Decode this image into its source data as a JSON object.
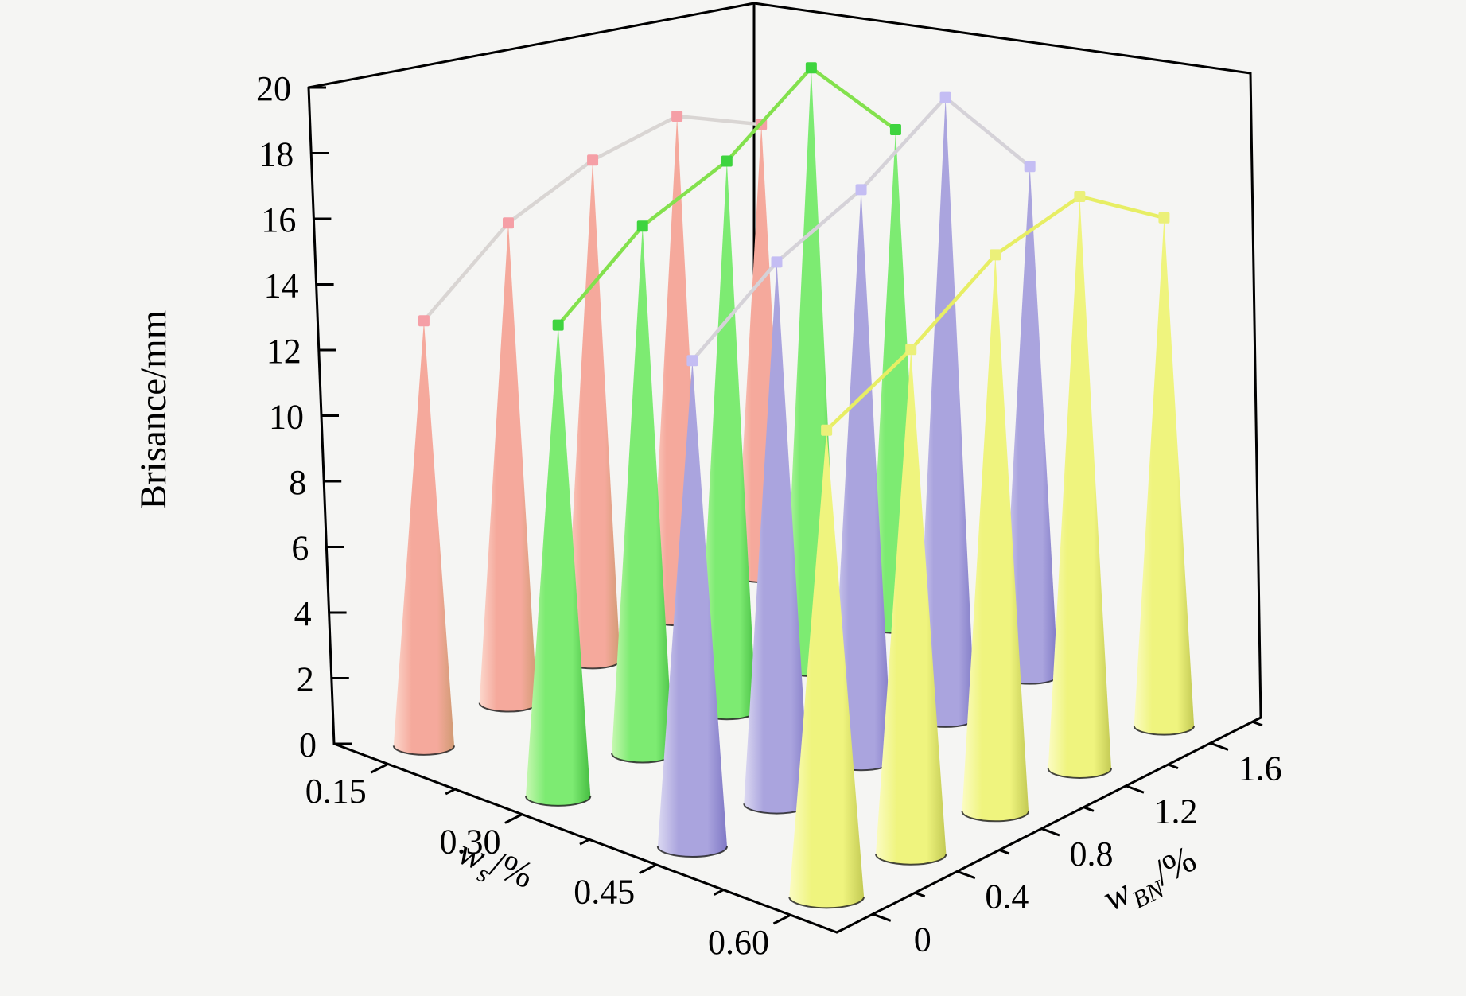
{
  "figure": {
    "background": "#f5f5f3",
    "axis_color": "#000000",
    "frame_line_width": 3
  },
  "chart_data": {
    "type": "bar",
    "subtype": "3d-cone-bar",
    "title": "",
    "grid": false,
    "legend": "none",
    "z_axis": {
      "label": "Brisance/mm",
      "ticks": [
        "0",
        "2",
        "4",
        "6",
        "8",
        "10",
        "12",
        "14",
        "16",
        "18",
        "20"
      ],
      "range": [
        0,
        20
      ]
    },
    "ws_axis": {
      "label_var": "w",
      "label_sub": "s",
      "label_unit": "/%",
      "ticks": [
        "0.15",
        "0.30",
        "0.45",
        "0.60"
      ],
      "values": [
        0.15,
        0.3,
        0.45,
        0.6
      ]
    },
    "wbn_axis": {
      "label_var": "w",
      "label_sub": "BN",
      "label_unit": "/%",
      "ticks": [
        "0",
        "0.4",
        "0.8",
        "1.2",
        "1.6"
      ],
      "values": [
        0,
        0.4,
        0.8,
        1.2,
        1.6
      ]
    },
    "categories_wBN": [
      0,
      0.4,
      0.8,
      1.2,
      1.6
    ],
    "series": [
      {
        "name": "ws=0.15",
        "ws": 0.15,
        "values": [
          12.9,
          15.3,
          16.7,
          17.5,
          16.4
        ],
        "cone_light": "#fcd8cd",
        "cone_main": "#f5a99c",
        "cone_dark": "#d09a72",
        "line_color": "#d9d5d3",
        "marker_color": "#f59fa6"
      },
      {
        "name": "ws=0.30",
        "ws": 0.3,
        "values": [
          13.4,
          15.8,
          17.3,
          19.8,
          17.1
        ],
        "cone_light": "#c8f8b2",
        "cone_main": "#7deb72",
        "cone_dark": "#46bd42",
        "line_color": "#83e14d",
        "marker_color": "#3ed43e"
      },
      {
        "name": "ws=0.45",
        "ws": 0.45,
        "values": [
          12.9,
          15.2,
          16.9,
          19.3,
          16.6
        ],
        "cone_light": "#dcd9f2",
        "cone_main": "#aaa4de",
        "cone_dark": "#7f78c5",
        "line_color": "#d5d2d8",
        "marker_color": "#c4bdf3"
      },
      {
        "name": "ws=0.60",
        "ws": 0.6,
        "values": [
          11.5,
          13.2,
          15.4,
          16.7,
          15.6
        ],
        "cone_light": "#fbfcc3",
        "cone_main": "#eff47e",
        "cone_dark": "#c3ca54",
        "line_color": "#e7ee64",
        "marker_color": "#ebf079"
      }
    ],
    "marker_shape": "square",
    "marker_size": 14
  }
}
